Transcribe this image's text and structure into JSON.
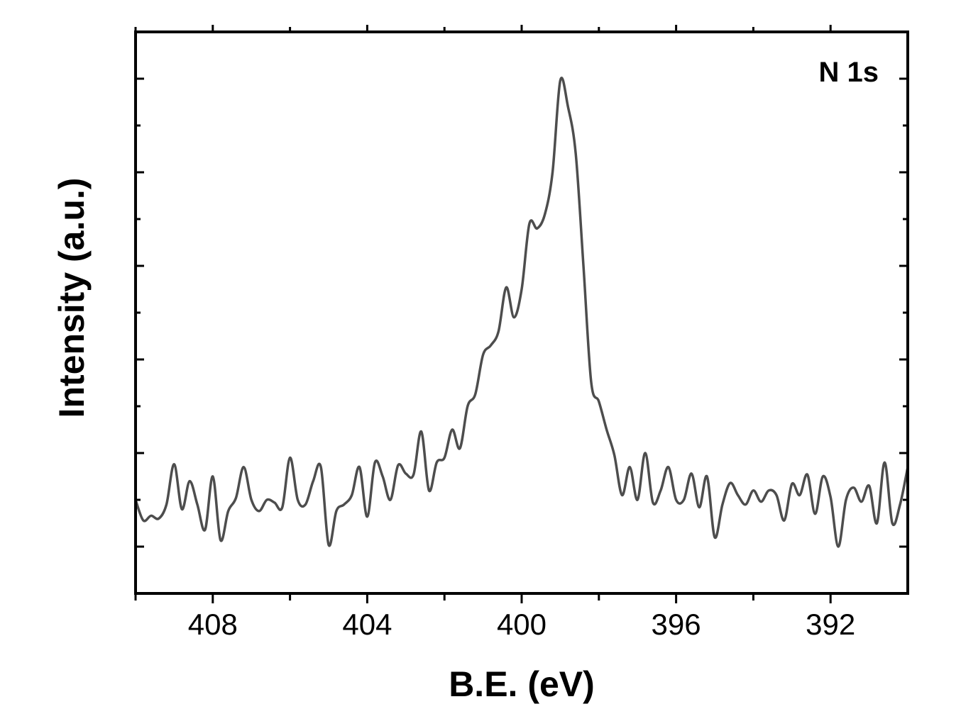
{
  "chart_data": {
    "type": "line",
    "xlabel": "B.E. (eV)",
    "ylabel": "Intensity (a.u.)",
    "annotation": "N 1s",
    "xlim": [
      410,
      390
    ],
    "x_reversed": true,
    "ylim": [
      0,
      6
    ],
    "x_ticks": [
      408,
      404,
      400,
      396,
      392
    ],
    "x_tick_labels": [
      "408",
      "404",
      "400",
      "396",
      "392"
    ],
    "y_major_ticks": [
      0.5,
      1.5,
      2.5,
      3.5,
      4.5,
      5.5
    ],
    "y_tick_labels_shown": false,
    "grid": false,
    "line_color": "#4d4d4d",
    "series": [
      {
        "values_x": [
          410.0,
          409.8,
          409.6,
          409.4,
          409.2,
          409.0,
          408.8,
          408.6,
          408.4,
          408.2,
          408.0,
          407.8,
          407.6,
          407.4,
          407.2,
          407.0,
          406.8,
          406.6,
          406.4,
          406.2,
          406.0,
          405.8,
          405.6,
          405.4,
          405.2,
          405.0,
          404.8,
          404.6,
          404.4,
          404.2,
          404.0,
          403.8,
          403.6,
          403.4,
          403.2,
          403.0,
          402.8,
          402.6,
          402.4,
          402.2,
          402.0,
          401.8,
          401.6,
          401.4,
          401.2,
          401.0,
          400.8,
          400.6,
          400.4,
          400.2,
          400.0,
          399.8,
          399.6,
          399.4,
          399.2,
          399.0,
          398.8,
          398.6,
          398.4,
          398.2,
          398.0,
          397.8,
          397.6,
          397.4,
          397.2,
          397.0,
          396.8,
          396.6,
          396.4,
          396.2,
          396.0,
          395.8,
          395.6,
          395.4,
          395.2,
          395.0,
          394.8,
          394.6,
          394.4,
          394.2,
          394.0,
          393.8,
          393.6,
          393.4,
          393.2,
          393.0,
          392.8,
          392.6,
          392.4,
          392.2,
          392.0,
          391.8,
          391.6,
          391.4,
          391.2,
          391.0,
          390.8,
          390.6,
          390.4,
          390.2,
          390.0
        ],
        "values_y": [
          1.0,
          0.78,
          0.83,
          0.8,
          0.95,
          1.38,
          0.9,
          1.2,
          0.95,
          0.68,
          1.25,
          0.57,
          0.88,
          1.02,
          1.35,
          1.0,
          0.88,
          1.0,
          0.97,
          0.92,
          1.45,
          1.0,
          0.95,
          1.2,
          1.35,
          0.52,
          0.88,
          0.95,
          1.05,
          1.35,
          0.82,
          1.4,
          1.25,
          1.0,
          1.37,
          1.28,
          1.27,
          1.73,
          1.1,
          1.4,
          1.45,
          1.75,
          1.55,
          2.0,
          2.13,
          2.55,
          2.65,
          2.8,
          3.27,
          2.95,
          3.25,
          3.95,
          3.9,
          4.05,
          4.5,
          5.48,
          5.2,
          4.7,
          3.5,
          2.26,
          2.05,
          1.75,
          1.48,
          1.05,
          1.35,
          1.0,
          1.5,
          0.97,
          1.1,
          1.35,
          1.0,
          1.0,
          1.28,
          0.92,
          1.25,
          0.6,
          0.95,
          1.18,
          1.05,
          0.95,
          1.1,
          0.98,
          1.1,
          1.05,
          0.78,
          1.17,
          1.05,
          1.27,
          0.85,
          1.25,
          1.03,
          0.5,
          1.0,
          1.13,
          0.98,
          1.15,
          0.75,
          1.4,
          0.75,
          0.95,
          1.35
        ]
      }
    ]
  }
}
